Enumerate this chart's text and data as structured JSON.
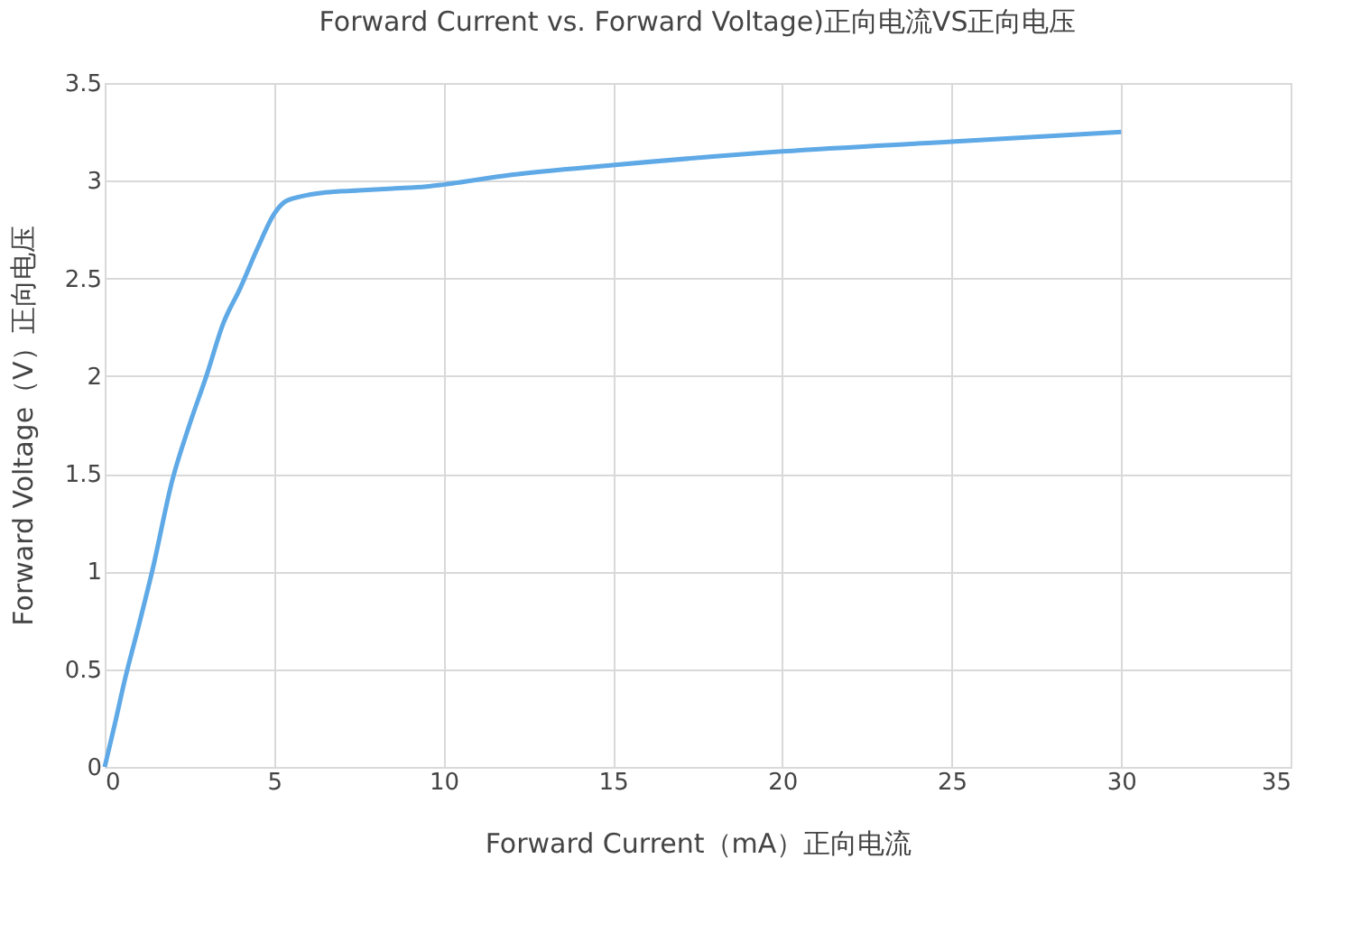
{
  "chart_data": {
    "type": "line",
    "title": "Forward Current vs. Forward Voltage)正向电流VS正向电压",
    "xlabel": "Forward Current（mA）正向电流",
    "ylabel": "Forward Voltage（V）正向电压",
    "x": [
      0,
      0.3,
      0.6,
      1.0,
      1.4,
      2.0,
      2.5,
      3.0,
      3.5,
      4.0,
      4.5,
      5.0,
      5.3,
      5.8,
      6.5,
      7.5,
      8.5,
      9.5,
      10,
      12,
      15,
      20,
      25,
      30
    ],
    "series": [
      {
        "color": "#5ea9e6",
        "values": [
          0,
          0.22,
          0.45,
          0.72,
          1.0,
          1.47,
          1.75,
          2.0,
          2.27,
          2.45,
          2.65,
          2.83,
          2.89,
          2.92,
          2.94,
          2.95,
          2.96,
          2.97,
          2.98,
          3.03,
          3.08,
          3.15,
          3.2,
          3.25
        ]
      }
    ],
    "xlim": [
      0,
      35
    ],
    "xticks": [
      0,
      5,
      10,
      15,
      20,
      25,
      30,
      35
    ],
    "ylim": [
      0,
      3.5
    ],
    "yticks": [
      0,
      0.5,
      1,
      1.5,
      2,
      2.5,
      3,
      3.5
    ],
    "grid": true,
    "marker": "none",
    "line_style": "solid"
  }
}
